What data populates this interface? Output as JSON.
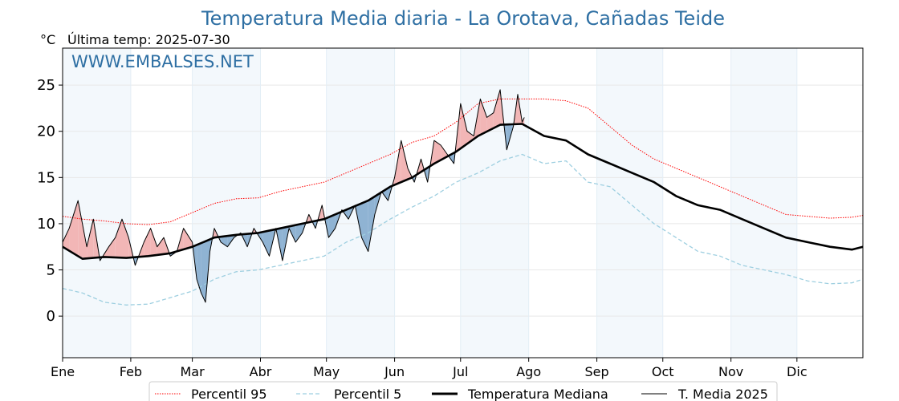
{
  "header": {
    "title": "Temperatura Media diaria - La Orotava, Cañadas Teide",
    "unit": "°C",
    "last_temp": "Última temp: 2025-07-30"
  },
  "watermark": "WWW.EMBALSES.NET",
  "colors": {
    "p95": "#ff0000",
    "p5": "#9ecfe0",
    "median": "#000000",
    "current": "#000000",
    "above_fill": "#f2b6b6",
    "below_fill": "#8fb3d3",
    "band": "#f3f8fc",
    "title": "#2e6fa3"
  },
  "chart_data": {
    "type": "line",
    "title": "Temperatura Media diaria - La Orotava, Cañadas Teide",
    "ylabel": "°C",
    "xlim": [
      1,
      365
    ],
    "ylim": [
      -4.5,
      29
    ],
    "yticks": [
      0,
      5,
      10,
      15,
      20,
      25
    ],
    "month_ticks": [
      {
        "label": "Ene",
        "day": 1
      },
      {
        "label": "Feb",
        "day": 32
      },
      {
        "label": "Mar",
        "day": 60
      },
      {
        "label": "Abr",
        "day": 91
      },
      {
        "label": "May",
        "day": 121
      },
      {
        "label": "Jun",
        "day": 152
      },
      {
        "label": "Jul",
        "day": 182
      },
      {
        "label": "Ago",
        "day": 213
      },
      {
        "label": "Sep",
        "day": 244
      },
      {
        "label": "Oct",
        "day": 274
      },
      {
        "label": "Nov",
        "day": 305
      },
      {
        "label": "Dic",
        "day": 335
      }
    ],
    "grid": true,
    "legend_position": "bottom",
    "series": [
      {
        "name": "Percentil 95",
        "style": "dotted",
        "x_day": [
          1,
          10,
          20,
          30,
          40,
          50,
          60,
          70,
          80,
          90,
          100,
          110,
          120,
          130,
          140,
          150,
          160,
          170,
          180,
          190,
          200,
          210,
          220,
          230,
          240,
          250,
          260,
          270,
          280,
          290,
          300,
          310,
          320,
          330,
          340,
          350,
          360,
          365
        ],
        "values": [
          10.8,
          10.5,
          10.3,
          10.0,
          9.9,
          10.2,
          11.2,
          12.2,
          12.7,
          12.8,
          13.5,
          14.0,
          14.5,
          15.5,
          16.5,
          17.5,
          18.8,
          19.5,
          21.0,
          23.0,
          23.5,
          23.5,
          23.5,
          23.3,
          22.5,
          20.5,
          18.5,
          17.0,
          16.0,
          15.0,
          14.0,
          13.0,
          12.0,
          11.0,
          10.8,
          10.6,
          10.7,
          10.9
        ]
      },
      {
        "name": "Percentil 5",
        "style": "dashed",
        "x_day": [
          1,
          10,
          20,
          30,
          40,
          50,
          60,
          70,
          80,
          90,
          100,
          110,
          120,
          130,
          140,
          150,
          160,
          170,
          180,
          190,
          200,
          210,
          220,
          230,
          240,
          250,
          260,
          270,
          280,
          290,
          300,
          310,
          320,
          330,
          340,
          350,
          360,
          365
        ],
        "values": [
          3.0,
          2.5,
          1.5,
          1.2,
          1.3,
          2.0,
          2.7,
          4.0,
          4.8,
          5.0,
          5.5,
          6.0,
          6.5,
          8.0,
          9.0,
          10.5,
          11.8,
          13.0,
          14.5,
          15.5,
          16.8,
          17.5,
          16.5,
          16.8,
          14.5,
          14.0,
          12.0,
          10.0,
          8.5,
          7.0,
          6.5,
          5.5,
          5.0,
          4.5,
          3.8,
          3.5,
          3.6,
          4.0
        ]
      },
      {
        "name": "Temperatura Mediana",
        "style": "solid-bold",
        "x_day": [
          1,
          10,
          20,
          30,
          40,
          50,
          60,
          70,
          80,
          90,
          100,
          110,
          120,
          130,
          140,
          150,
          160,
          170,
          180,
          190,
          200,
          210,
          220,
          230,
          240,
          250,
          260,
          270,
          280,
          290,
          300,
          310,
          320,
          330,
          340,
          350,
          360,
          365
        ],
        "values": [
          7.5,
          6.2,
          6.4,
          6.3,
          6.5,
          6.8,
          7.5,
          8.5,
          8.8,
          9.0,
          9.5,
          10.0,
          10.5,
          11.5,
          12.5,
          14.0,
          15.0,
          16.5,
          17.8,
          19.5,
          20.7,
          20.8,
          19.5,
          19.0,
          17.5,
          16.5,
          15.5,
          14.5,
          13.0,
          12.0,
          11.5,
          10.5,
          9.5,
          8.5,
          8.0,
          7.5,
          7.2,
          7.5
        ]
      },
      {
        "name": "T. Media 2025",
        "style": "solid-thin",
        "x_day": [
          1,
          4,
          8,
          12,
          15,
          18,
          22,
          25,
          28,
          31,
          34,
          38,
          41,
          44,
          47,
          50,
          53,
          56,
          60,
          62,
          64,
          66,
          68,
          70,
          73,
          76,
          79,
          82,
          85,
          88,
          92,
          95,
          98,
          101,
          104,
          107,
          110,
          113,
          116,
          119,
          122,
          125,
          128,
          131,
          134,
          137,
          140,
          143,
          146,
          149,
          152,
          155,
          158,
          161,
          164,
          167,
          170,
          173,
          176,
          179,
          182,
          185,
          188,
          191,
          194,
          197,
          200,
          203,
          206,
          208,
          210,
          211
        ],
        "values": [
          8.0,
          9.5,
          12.5,
          7.5,
          10.5,
          6.0,
          7.5,
          8.5,
          10.5,
          8.5,
          5.5,
          8.0,
          9.5,
          7.5,
          8.5,
          6.5,
          7.0,
          9.5,
          8.0,
          4.0,
          2.5,
          1.5,
          7.0,
          9.5,
          8.0,
          7.5,
          8.5,
          9.0,
          7.5,
          9.5,
          8.0,
          6.5,
          9.5,
          6.0,
          9.5,
          8.0,
          9.0,
          11.0,
          9.5,
          12.0,
          8.5,
          9.5,
          11.5,
          10.5,
          12.0,
          8.5,
          7.0,
          11.0,
          13.5,
          12.5,
          15.0,
          19.0,
          16.0,
          14.5,
          17.0,
          14.5,
          19.0,
          18.5,
          17.5,
          16.5,
          23.0,
          20.0,
          19.5,
          23.5,
          21.5,
          22.0,
          24.5,
          18.0,
          20.5,
          24.0,
          21.0,
          21.5
        ]
      }
    ]
  },
  "legend": {
    "p95": "Percentil 95",
    "p5": "Percentil 5",
    "median": "Temperatura Mediana",
    "current": "T. Media 2025"
  }
}
